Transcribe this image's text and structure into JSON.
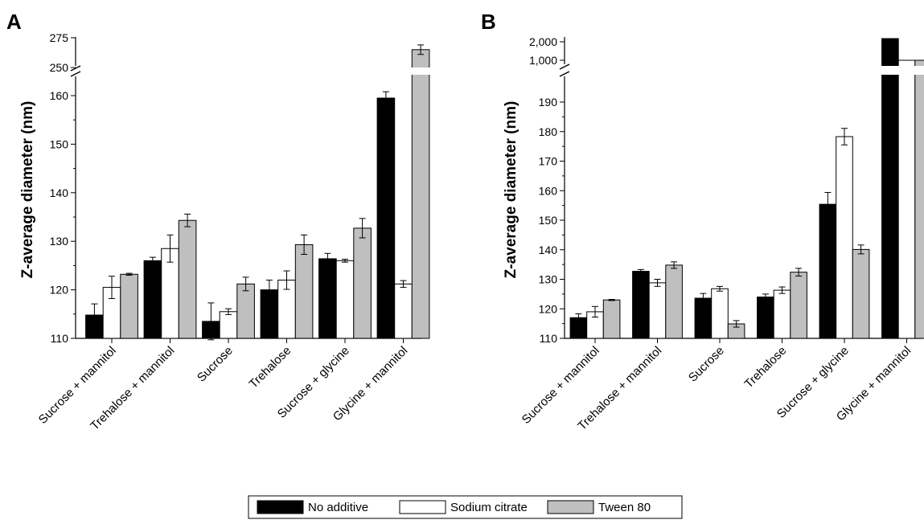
{
  "chart_data": [
    {
      "panel": "A",
      "type": "bar",
      "ylabel": "Z-average diameter (nm)",
      "categories": [
        "Sucrose + mannitol",
        "Trehalose + mannitol",
        "Sucrose",
        "Trehalose",
        "Sucrose + glycine",
        "Glycine + mannitol"
      ],
      "series": [
        {
          "name": "No additive",
          "values": [
            114.8,
            126.0,
            113.5,
            120.0,
            126.4,
            159.5
          ],
          "errors": [
            2.3,
            0.7,
            3.8,
            2.0,
            1.1,
            1.3
          ]
        },
        {
          "name": "Sodium citrate",
          "values": [
            120.5,
            128.5,
            115.5,
            122.0,
            126.0,
            121.2
          ],
          "errors": [
            2.3,
            2.8,
            0.6,
            1.9,
            0.3,
            0.7
          ]
        },
        {
          "name": "Tween 80",
          "values": [
            123.2,
            134.3,
            121.2,
            129.3,
            132.7,
            265.0
          ],
          "errors": [
            0.2,
            1.3,
            1.4,
            2.0,
            2.0,
            4.0
          ]
        }
      ],
      "yticks_lower": [
        110,
        120,
        130,
        140,
        150,
        160
      ],
      "yticks_upper": [
        250,
        275
      ],
      "axis_break": [
        163,
        248
      ],
      "ylim": [
        110,
        275
      ]
    },
    {
      "panel": "B",
      "type": "bar",
      "ylabel": "Z-average diameter (nm)",
      "categories": [
        "Sucrose + mannitol",
        "Trehalose + mannitol",
        "Sucrose",
        "Trehalose",
        "Sucrose + glycine",
        "Glycine + mannitol"
      ],
      "series": [
        {
          "name": "No additive",
          "values": [
            117.0,
            132.7,
            123.6,
            124.0,
            155.4,
            2500
          ],
          "errors": [
            1.3,
            0.6,
            1.6,
            1.0,
            4.0,
            0
          ]
        },
        {
          "name": "Sodium citrate",
          "values": [
            119.0,
            128.8,
            126.8,
            126.3,
            178.3,
            1000
          ],
          "errors": [
            1.8,
            1.2,
            0.8,
            1.1,
            2.8,
            0
          ]
        },
        {
          "name": "Tween 80",
          "values": [
            123.0,
            134.8,
            114.9,
            132.4,
            140.1,
            1000
          ],
          "errors": [
            0.2,
            1.1,
            1.1,
            1.3,
            1.5,
            0
          ]
        }
      ],
      "yticks_lower": [
        110,
        120,
        130,
        140,
        150,
        160,
        170,
        180,
        190
      ],
      "yticks_upper": [
        "1,000",
        "2,000"
      ],
      "axis_break": [
        195,
        900
      ],
      "ylim": [
        110,
        2500
      ]
    }
  ],
  "panel_labels": {
    "a": "A",
    "b": "B"
  },
  "legend": [
    {
      "name": "No additive",
      "color": "#000000"
    },
    {
      "name": "Sodium citrate",
      "color": "#ffffff"
    },
    {
      "name": "Tween 80",
      "color": "#bfbfbf"
    }
  ],
  "colors": {
    "no_additive": "#000000",
    "sodium_citrate": "#ffffff",
    "tween_80": "#bfbfbf"
  }
}
